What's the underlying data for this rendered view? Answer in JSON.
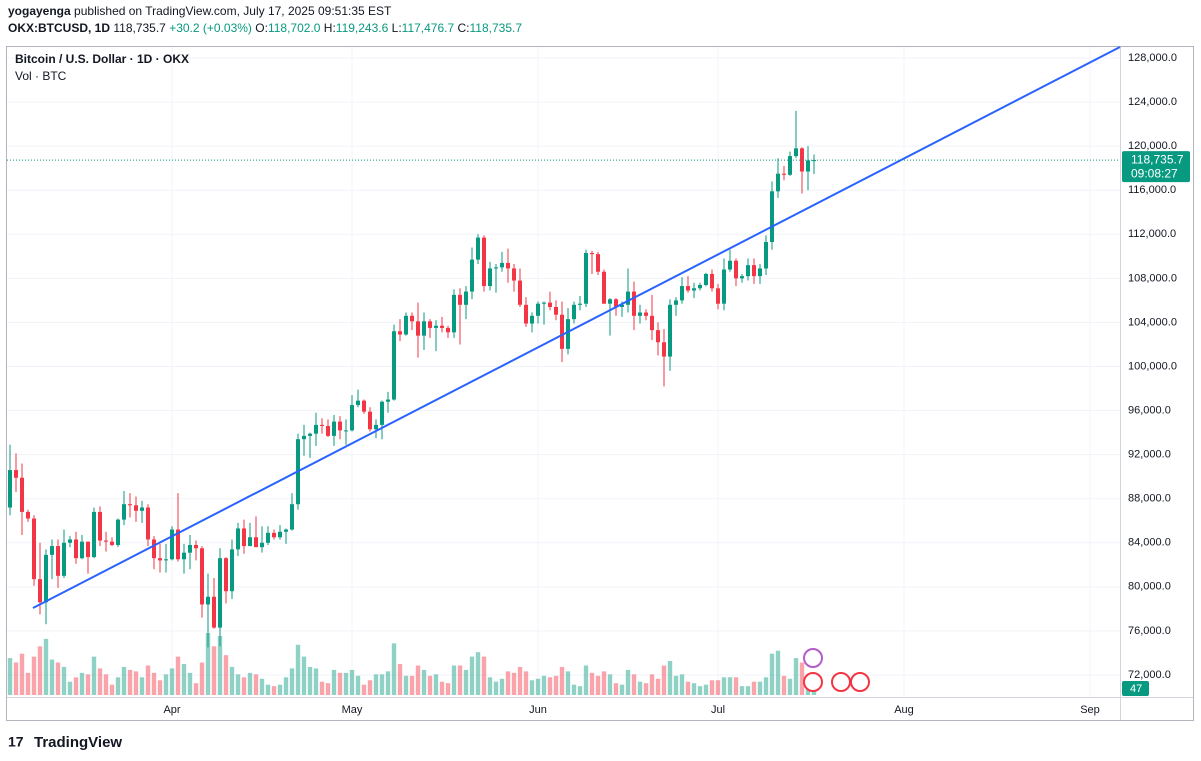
{
  "header": {
    "author": "yogayenga",
    "published": "published on TradingView.com, July 17, 2025 09:51:35 EST",
    "symbol": "OKX:BTCUSD, 1D",
    "last": "118,735.7",
    "change": "+30.2 (+0.03%)",
    "ohlc_labels": [
      "O:",
      "H:",
      "L:",
      "C:"
    ],
    "ohlc": [
      "118,702.0",
      "119,243.6",
      "117,476.7",
      "118,735.7"
    ]
  },
  "footer": {
    "brand": "TradingView"
  },
  "chart_data": {
    "type": "candlestick",
    "title": "Bitcoin / U.S. Dollar · 1D · OKX",
    "volume_label": "Vol · BTC",
    "price_tag": [
      "118,735.7",
      "09:08:27"
    ],
    "up_color": "#089981",
    "down_color": "#f23645",
    "ylim": [
      70000,
      129000
    ],
    "yticks": [
      {
        "value": 72000,
        "label": "72,000.0"
      },
      {
        "value": 76000,
        "label": "76,000.0"
      },
      {
        "value": 80000,
        "label": "80,000.0"
      },
      {
        "value": 84000,
        "label": "84,000.0"
      },
      {
        "value": 88000,
        "label": "88,000.0"
      },
      {
        "value": 92000,
        "label": "92,000.0"
      },
      {
        "value": 96000,
        "label": "96,000.0"
      },
      {
        "value": 100000,
        "label": "100,000.0"
      },
      {
        "value": 104000,
        "label": "104,000.0"
      },
      {
        "value": 108000,
        "label": "108,000.0"
      },
      {
        "value": 112000,
        "label": "112,000.0"
      },
      {
        "value": 116000,
        "label": "116,000.0"
      },
      {
        "value": 120000,
        "label": "120,000.0"
      },
      {
        "value": 124000,
        "label": "124,000.0"
      },
      {
        "value": 128000,
        "label": "128,000.0"
      }
    ],
    "xlim": [
      -0.5,
      185
    ],
    "xticks": [
      {
        "value": 27,
        "label": "Apr"
      },
      {
        "value": 57,
        "label": "May"
      },
      {
        "value": 88,
        "label": "Jun"
      },
      {
        "value": 118,
        "label": "Jul"
      },
      {
        "value": 149,
        "label": "Aug"
      },
      {
        "value": 180,
        "label": "Sep"
      }
    ],
    "vlim": [
      0,
      420
    ],
    "ohlc": [
      [
        87200,
        92900,
        86500,
        90600
      ],
      [
        90600,
        92100,
        88600,
        89900
      ],
      [
        89900,
        91200,
        84700,
        86800
      ],
      [
        86800,
        87000,
        85900,
        86200
      ],
      [
        86200,
        86500,
        80100,
        80700
      ],
      [
        80700,
        84000,
        77500,
        78600
      ],
      [
        78600,
        83400,
        76600,
        82900
      ],
      [
        82900,
        84300,
        80700,
        83700
      ],
      [
        83700,
        84300,
        79900,
        81000
      ],
      [
        81000,
        85200,
        80800,
        84000
      ],
      [
        84000,
        84600,
        83600,
        84300
      ],
      [
        84300,
        85000,
        82100,
        82600
      ],
      [
        82600,
        84700,
        82500,
        84100
      ],
      [
        84100,
        84100,
        81200,
        82700
      ],
      [
        82700,
        87200,
        82600,
        86800
      ],
      [
        86800,
        87300,
        83700,
        84200
      ],
      [
        84200,
        85000,
        83200,
        84100
      ],
      [
        84100,
        84500,
        83700,
        83800
      ],
      [
        83800,
        86200,
        83600,
        86100
      ],
      [
        86100,
        88700,
        85600,
        87500
      ],
      [
        87500,
        88500,
        86300,
        87400
      ],
      [
        87400,
        88200,
        85900,
        86900
      ],
      [
        86900,
        87800,
        85800,
        87200
      ],
      [
        87200,
        87500,
        83700,
        84300
      ],
      [
        84300,
        84600,
        81600,
        82600
      ],
      [
        82600,
        83900,
        81300,
        82400
      ],
      [
        82400,
        83900,
        81300,
        82500
      ],
      [
        82500,
        85500,
        82400,
        85200
      ],
      [
        85200,
        88500,
        82300,
        82500
      ],
      [
        82500,
        83900,
        81200,
        83100
      ],
      [
        83100,
        84700,
        81600,
        83800
      ],
      [
        83800,
        84200,
        82400,
        83500
      ],
      [
        83500,
        83700,
        77200,
        78400
      ],
      [
        78400,
        81200,
        74500,
        79100
      ],
      [
        79100,
        80800,
        76200,
        76300
      ],
      [
        76300,
        83500,
        74600,
        82600
      ],
      [
        82600,
        82700,
        78500,
        79600
      ],
      [
        79600,
        84300,
        78900,
        83400
      ],
      [
        83400,
        85800,
        82800,
        85300
      ],
      [
        85300,
        86100,
        83000,
        83700
      ],
      [
        83700,
        85800,
        83700,
        84500
      ],
      [
        84500,
        86400,
        83600,
        83600
      ],
      [
        83600,
        85500,
        83100,
        84000
      ],
      [
        84000,
        85500,
        83800,
        84900
      ],
      [
        84900,
        85200,
        84300,
        84500
      ],
      [
        84500,
        85600,
        84300,
        85000
      ],
      [
        85000,
        85300,
        83900,
        85200
      ],
      [
        85200,
        88500,
        85100,
        87500
      ],
      [
        87500,
        93900,
        87000,
        93400
      ],
      [
        93400,
        94700,
        91900,
        93700
      ],
      [
        93700,
        94000,
        91700,
        93900
      ],
      [
        93900,
        95800,
        92800,
        94700
      ],
      [
        94700,
        95300,
        93900,
        94600
      ],
      [
        94600,
        95200,
        93600,
        93700
      ],
      [
        93700,
        95600,
        92800,
        95000
      ],
      [
        95000,
        95500,
        93400,
        94200
      ],
      [
        94200,
        95200,
        92900,
        94200
      ],
      [
        94200,
        97400,
        94100,
        96500
      ],
      [
        96500,
        97900,
        96300,
        96900
      ],
      [
        96900,
        97000,
        95700,
        95900
      ],
      [
        95900,
        96300,
        94100,
        94300
      ],
      [
        94300,
        95200,
        93500,
        94700
      ],
      [
        94700,
        96900,
        93400,
        96800
      ],
      [
        96800,
        97700,
        95800,
        97000
      ],
      [
        97000,
        103800,
        96900,
        103200
      ],
      [
        103200,
        104300,
        102300,
        102900
      ],
      [
        102900,
        104900,
        102800,
        104600
      ],
      [
        104600,
        104900,
        103300,
        104100
      ],
      [
        104100,
        105800,
        100800,
        102800
      ],
      [
        102800,
        104900,
        101500,
        104100
      ],
      [
        104100,
        104300,
        102600,
        103500
      ],
      [
        103500,
        104200,
        101400,
        103700
      ],
      [
        103700,
        104500,
        103100,
        103500
      ],
      [
        103500,
        103700,
        102600,
        103100
      ],
      [
        103100,
        107000,
        102600,
        106500
      ],
      [
        106500,
        107100,
        102000,
        105600
      ],
      [
        105600,
        107300,
        104300,
        106800
      ],
      [
        106800,
        110800,
        106100,
        109700
      ],
      [
        109700,
        112000,
        109300,
        111700
      ],
      [
        111700,
        111900,
        106800,
        107300
      ],
      [
        107300,
        109500,
        106900,
        108900
      ],
      [
        108900,
        109300,
        106700,
        109000
      ],
      [
        109000,
        110400,
        108600,
        109400
      ],
      [
        109400,
        110700,
        107600,
        108900
      ],
      [
        108900,
        109300,
        106800,
        107800
      ],
      [
        107800,
        108900,
        105400,
        105600
      ],
      [
        105600,
        106300,
        103600,
        103900
      ],
      [
        103900,
        104900,
        103100,
        104600
      ],
      [
        104600,
        105900,
        103900,
        105700
      ],
      [
        105700,
        105900,
        103800,
        105800
      ],
      [
        105800,
        106800,
        105100,
        105400
      ],
      [
        105400,
        106000,
        104200,
        104700
      ],
      [
        104700,
        105900,
        100400,
        101600
      ],
      [
        101600,
        105300,
        101100,
        104300
      ],
      [
        104300,
        105900,
        103900,
        105600
      ],
      [
        105600,
        106400,
        105100,
        105700
      ],
      [
        105700,
        110600,
        105400,
        110300
      ],
      [
        110300,
        110500,
        108400,
        110200
      ],
      [
        110200,
        110400,
        108300,
        108600
      ],
      [
        108600,
        108800,
        105700,
        105700
      ],
      [
        105700,
        106200,
        102800,
        106100
      ],
      [
        106100,
        106200,
        104600,
        105400
      ],
      [
        105400,
        105900,
        104500,
        105600
      ],
      [
        105600,
        108900,
        104900,
        106800
      ],
      [
        106800,
        107700,
        103300,
        104600
      ],
      [
        104600,
        105600,
        103900,
        104900
      ],
      [
        104900,
        105200,
        104200,
        104600
      ],
      [
        104600,
        106500,
        102400,
        103300
      ],
      [
        103300,
        104000,
        101000,
        102200
      ],
      [
        102200,
        103400,
        98200,
        100900
      ],
      [
        100900,
        106100,
        99600,
        105600
      ],
      [
        105600,
        106300,
        104600,
        106000
      ],
      [
        106000,
        108100,
        105700,
        107300
      ],
      [
        107300,
        108200,
        106700,
        106900
      ],
      [
        106900,
        107600,
        106200,
        107100
      ],
      [
        107100,
        107600,
        106900,
        107400
      ],
      [
        107400,
        108500,
        107300,
        108400
      ],
      [
        108400,
        108800,
        106800,
        107100
      ],
      [
        107100,
        107500,
        105200,
        105700
      ],
      [
        105700,
        109800,
        105100,
        108800
      ],
      [
        108800,
        110600,
        108600,
        109600
      ],
      [
        109600,
        109800,
        107300,
        108000
      ],
      [
        108000,
        108400,
        107600,
        108200
      ],
      [
        108200,
        109800,
        107800,
        109200
      ],
      [
        109200,
        109800,
        107500,
        108200
      ],
      [
        108200,
        109300,
        107500,
        108900
      ],
      [
        108900,
        111900,
        108300,
        111300
      ],
      [
        111300,
        116800,
        110600,
        115900
      ],
      [
        115900,
        118900,
        115300,
        117500
      ],
      [
        117500,
        118200,
        116900,
        117400
      ],
      [
        117400,
        119500,
        117300,
        119100
      ],
      [
        119100,
        123200,
        118900,
        119800
      ],
      [
        119800,
        119900,
        115700,
        117700
      ],
      [
        117700,
        120000,
        116000,
        118705.5
      ],
      [
        118702,
        119243.6,
        117476.7,
        118735.7
      ]
    ],
    "volume": [
      250,
      220,
      280,
      150,
      260,
      330,
      380,
      240,
      220,
      190,
      90,
      120,
      150,
      140,
      260,
      180,
      140,
      70,
      120,
      190,
      170,
      160,
      120,
      200,
      150,
      100,
      140,
      180,
      260,
      210,
      150,
      80,
      220,
      420,
      330,
      400,
      270,
      190,
      140,
      120,
      150,
      140,
      110,
      70,
      60,
      70,
      120,
      180,
      340,
      260,
      190,
      180,
      90,
      80,
      170,
      150,
      150,
      170,
      130,
      70,
      100,
      140,
      140,
      160,
      350,
      210,
      130,
      130,
      200,
      170,
      130,
      140,
      90,
      80,
      200,
      200,
      170,
      260,
      290,
      260,
      120,
      90,
      110,
      160,
      150,
      190,
      160,
      100,
      110,
      130,
      120,
      130,
      190,
      160,
      70,
      60,
      200,
      150,
      130,
      160,
      140,
      80,
      70,
      170,
      140,
      90,
      80,
      140,
      110,
      200,
      230,
      130,
      140,
      90,
      80,
      60,
      70,
      100,
      100,
      120,
      120,
      120,
      60,
      60,
      90,
      90,
      120,
      280,
      300,
      130,
      110,
      250,
      220,
      140,
      47
    ]
  }
}
